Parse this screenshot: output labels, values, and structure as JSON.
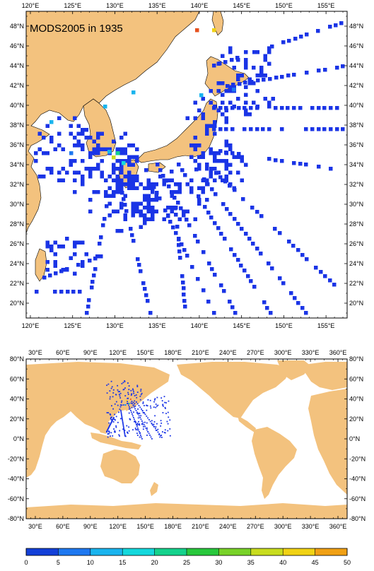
{
  "title": "MODS2005 in 1935",
  "colors": {
    "land": "#f3c27e",
    "ocean": "#ffffff",
    "frame": "#000000",
    "obs": "#1a34e6"
  },
  "top_map": {
    "lon_labels": [
      "120°E",
      "125°E",
      "130°E",
      "135°E",
      "140°E",
      "145°E",
      "150°E",
      "155°E"
    ],
    "lat_labels": [
      "48°N",
      "46°N",
      "44°N",
      "42°N",
      "40°N",
      "38°N",
      "36°N",
      "34°N",
      "32°N",
      "30°N",
      "28°N",
      "26°N",
      "24°N",
      "22°N",
      "20°N"
    ]
  },
  "bottom_map": {
    "lon_labels": [
      "30°E",
      "60°E",
      "90°E",
      "120°E",
      "150°E",
      "180°E",
      "210°E",
      "240°E",
      "270°E",
      "300°E",
      "330°E",
      "360°E"
    ],
    "lat_labels": [
      "80°N",
      "60°N",
      "40°N",
      "20°N",
      "0°N",
      "-20°N",
      "-40°N",
      "-60°N",
      "-80°N"
    ]
  },
  "colorbar": {
    "labels": [
      "0",
      "5",
      "10",
      "15",
      "20",
      "25",
      "30",
      "35",
      "40",
      "45",
      "50"
    ],
    "colors": [
      "#1340d8",
      "#1e78f0",
      "#19b4ee",
      "#14d8dc",
      "#14d28c",
      "#28c83c",
      "#78d228",
      "#c8dc1e",
      "#f0d214",
      "#f0a014",
      "#e6501e"
    ]
  },
  "chart_data": {
    "type": "heatmap",
    "title": "MODS2005 in 1935",
    "top_extent": {
      "lon": [
        119.5,
        157.5
      ],
      "lat": [
        18.5,
        49.5
      ]
    },
    "bottom_extent": {
      "lon": [
        20,
        370
      ],
      "lat": [
        -80,
        80
      ]
    },
    "colorbar_range": [
      0,
      50
    ],
    "colorbar_step": 5,
    "grid": false
  }
}
